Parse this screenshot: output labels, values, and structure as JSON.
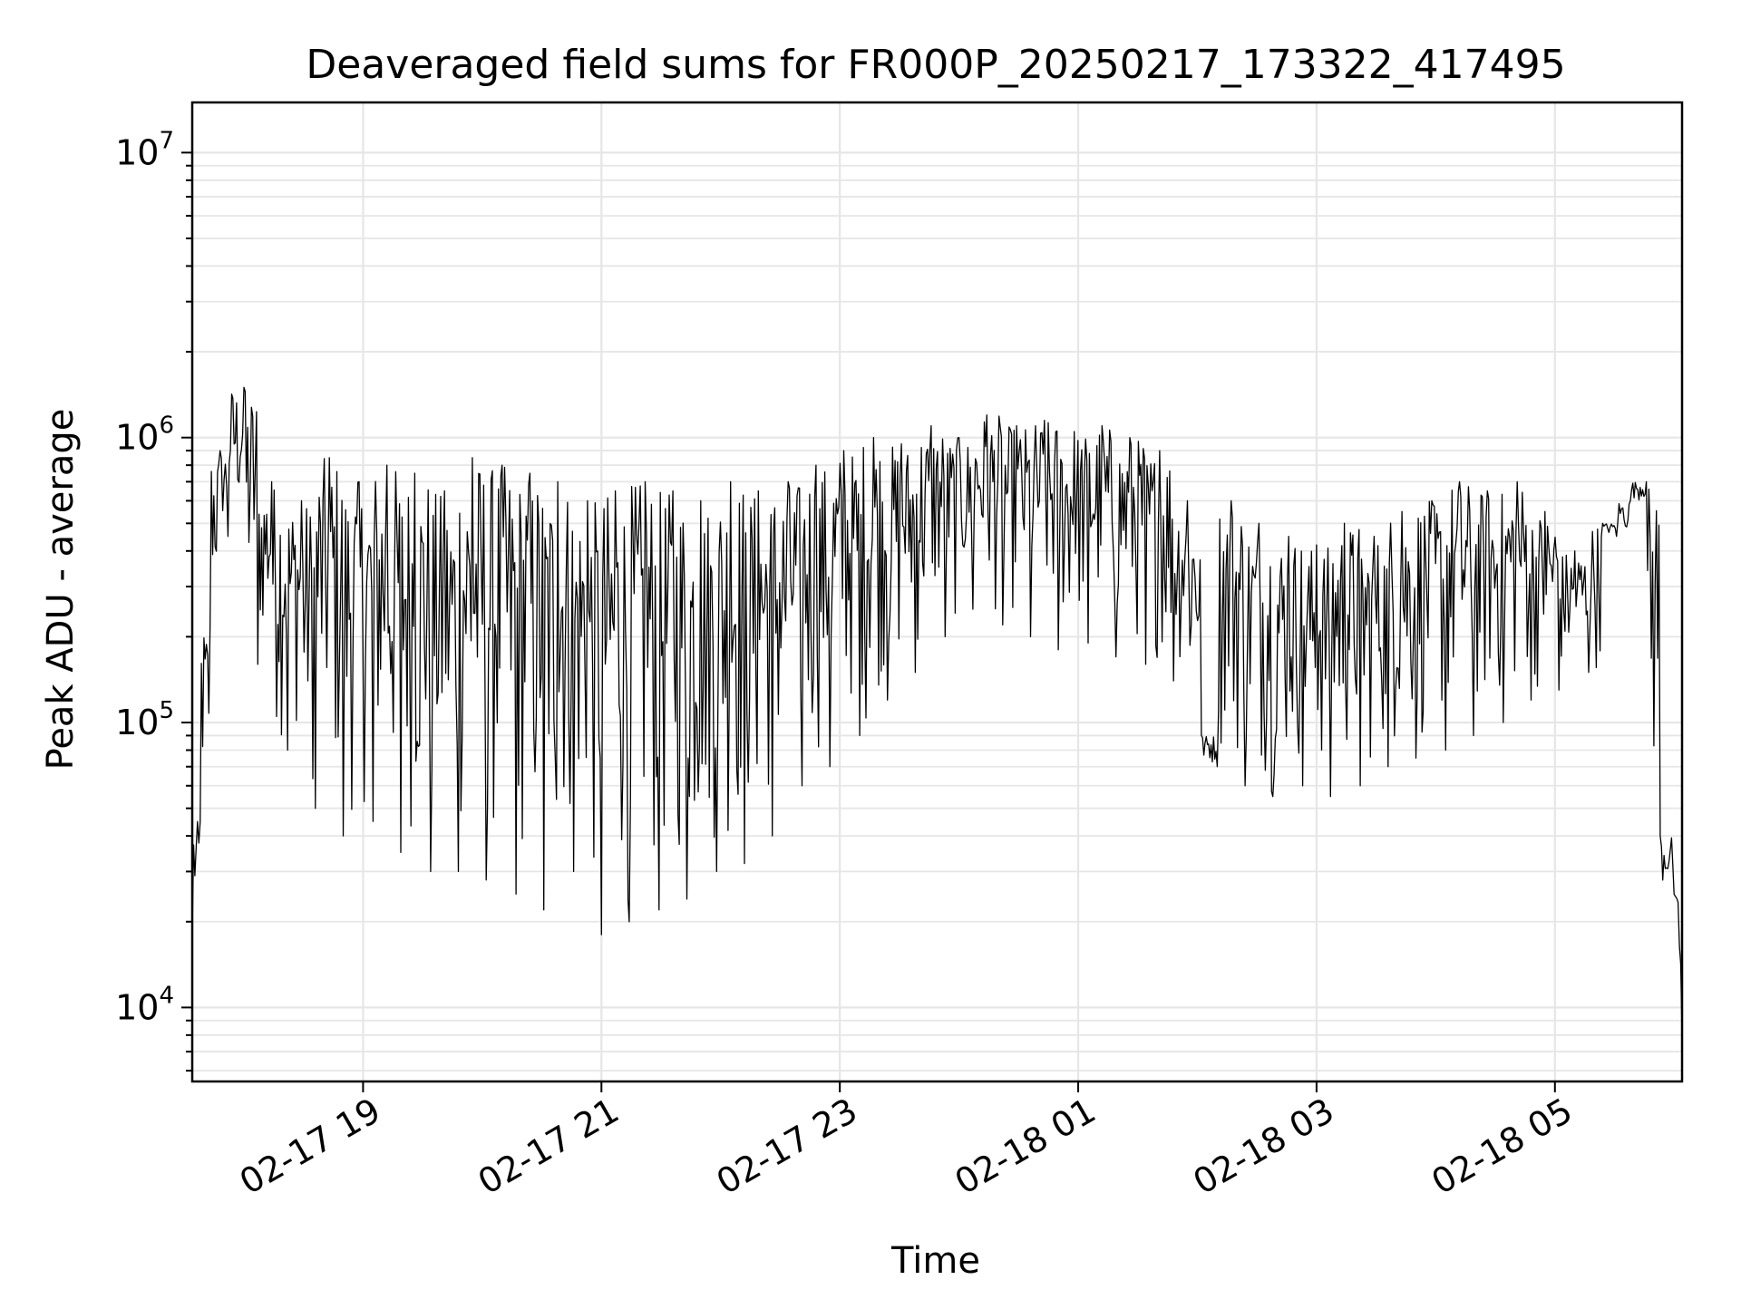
{
  "chart_data": {
    "type": "line",
    "title": "Deaveraged field sums for FR000P_20250217_173322_417495",
    "xlabel": "Time",
    "ylabel": "Peak ADU - average",
    "y_scale": "log",
    "ylim": [
      5500,
      15000000
    ],
    "xlim": [
      "02-17 17:34",
      "02-18 06:04"
    ],
    "grid": true,
    "legend": "none",
    "line_color": "#000000",
    "x_tick_labels": [
      "02-17 19",
      "02-17 21",
      "02-17 23",
      "02-18 01",
      "02-18 03",
      "02-18 05"
    ],
    "y_tick_labels": [
      {
        "base": "10",
        "exp": "4"
      },
      {
        "base": "10",
        "exp": "5"
      },
      {
        "base": "10",
        "exp": "6"
      },
      {
        "base": "10",
        "exp": "7"
      }
    ],
    "series": [
      {
        "x": [
          "02-17 17:34",
          "02-17 17:38",
          "02-17 17:43",
          "02-17 17:48",
          "02-17 17:52",
          "02-17 18:00",
          "02-17 18:07",
          "02-17 18:14",
          "02-17 18:22",
          "02-17 18:29",
          "02-17 18:36",
          "02-17 18:43",
          "02-17 18:50",
          "02-17 18:58",
          "02-17 19:05",
          "02-17 19:12",
          "02-17 19:19",
          "02-17 19:26",
          "02-17 19:34",
          "02-17 19:41",
          "02-17 19:48",
          "02-17 19:55",
          "02-17 20:02",
          "02-17 20:10",
          "02-17 20:17",
          "02-17 20:24",
          "02-17 20:31",
          "02-17 20:38",
          "02-17 20:46",
          "02-17 20:53",
          "02-17 21:00",
          "02-17 21:07",
          "02-17 21:14",
          "02-17 21:22",
          "02-17 21:29",
          "02-17 21:36",
          "02-17 21:43",
          "02-17 21:50",
          "02-17 21:58",
          "02-17 22:05",
          "02-17 22:12",
          "02-17 22:19",
          "02-17 22:26",
          "02-17 22:34",
          "02-17 22:41",
          "02-17 22:48",
          "02-17 22:55",
          "02-17 23:02",
          "02-17 23:10",
          "02-17 23:17",
          "02-17 23:24",
          "02-17 23:31",
          "02-17 23:38",
          "02-17 23:46",
          "02-17 23:53",
          "02-18 00:00",
          "02-18 00:07",
          "02-18 00:14",
          "02-18 00:22",
          "02-18 00:29",
          "02-18 00:36",
          "02-18 00:43",
          "02-18 00:50",
          "02-18 00:58",
          "02-18 01:05",
          "02-18 01:12",
          "02-18 01:19",
          "02-18 01:26",
          "02-18 01:34",
          "02-18 01:41",
          "02-18 01:48",
          "02-18 01:55",
          "02-18 02:02",
          "02-18 02:10",
          "02-18 02:17",
          "02-18 02:24",
          "02-18 02:31",
          "02-18 02:38",
          "02-18 02:46",
          "02-18 02:53",
          "02-18 03:00",
          "02-18 03:07",
          "02-18 03:14",
          "02-18 03:22",
          "02-18 03:29",
          "02-18 03:36",
          "02-18 03:43",
          "02-18 03:50",
          "02-18 03:58",
          "02-18 04:05",
          "02-18 04:12",
          "02-18 04:19",
          "02-18 04:26",
          "02-18 04:34",
          "02-18 04:41",
          "02-18 04:48",
          "02-18 04:55",
          "02-18 05:02",
          "02-18 05:10",
          "02-18 05:17",
          "02-18 05:24",
          "02-18 05:31",
          "02-18 05:38",
          "02-18 05:46",
          "02-18 05:53",
          "02-18 06:00",
          "02-18 06:04"
        ],
        "y": [
          18000,
          45000,
          220000,
          900000,
          450000,
          1500000,
          160000,
          700000,
          80000,
          600000,
          50000,
          850000,
          40000,
          700000,
          45000,
          800000,
          35000,
          750000,
          30000,
          650000,
          30000,
          850000,
          28000,
          800000,
          25000,
          750000,
          22000,
          700000,
          30000,
          600000,
          18000,
          650000,
          20000,
          700000,
          22000,
          650000,
          24000,
          600000,
          30000,
          700000,
          32000,
          650000,
          40000,
          700000,
          60000,
          800000,
          70000,
          900000,
          90000,
          1000000,
          120000,
          950000,
          150000,
          1100000,
          200000,
          1000000,
          250000,
          1200000,
          220000,
          1100000,
          200000,
          1150000,
          180000,
          1050000,
          190000,
          1100000,
          170000,
          1000000,
          160000,
          900000,
          140000,
          600000,
          90000,
          70000,
          600000,
          60000,
          500000,
          55000,
          450000,
          60000,
          420000,
          55000,
          500000,
          60000,
          450000,
          70000,
          550000,
          75000,
          600000,
          80000,
          700000,
          90000,
          650000,
          100000,
          700000,
          120000,
          550000,
          130000,
          400000,
          150000,
          500000,
          450000,
          600000,
          700000,
          40000,
          25000,
          8000
        ]
      }
    ]
  }
}
